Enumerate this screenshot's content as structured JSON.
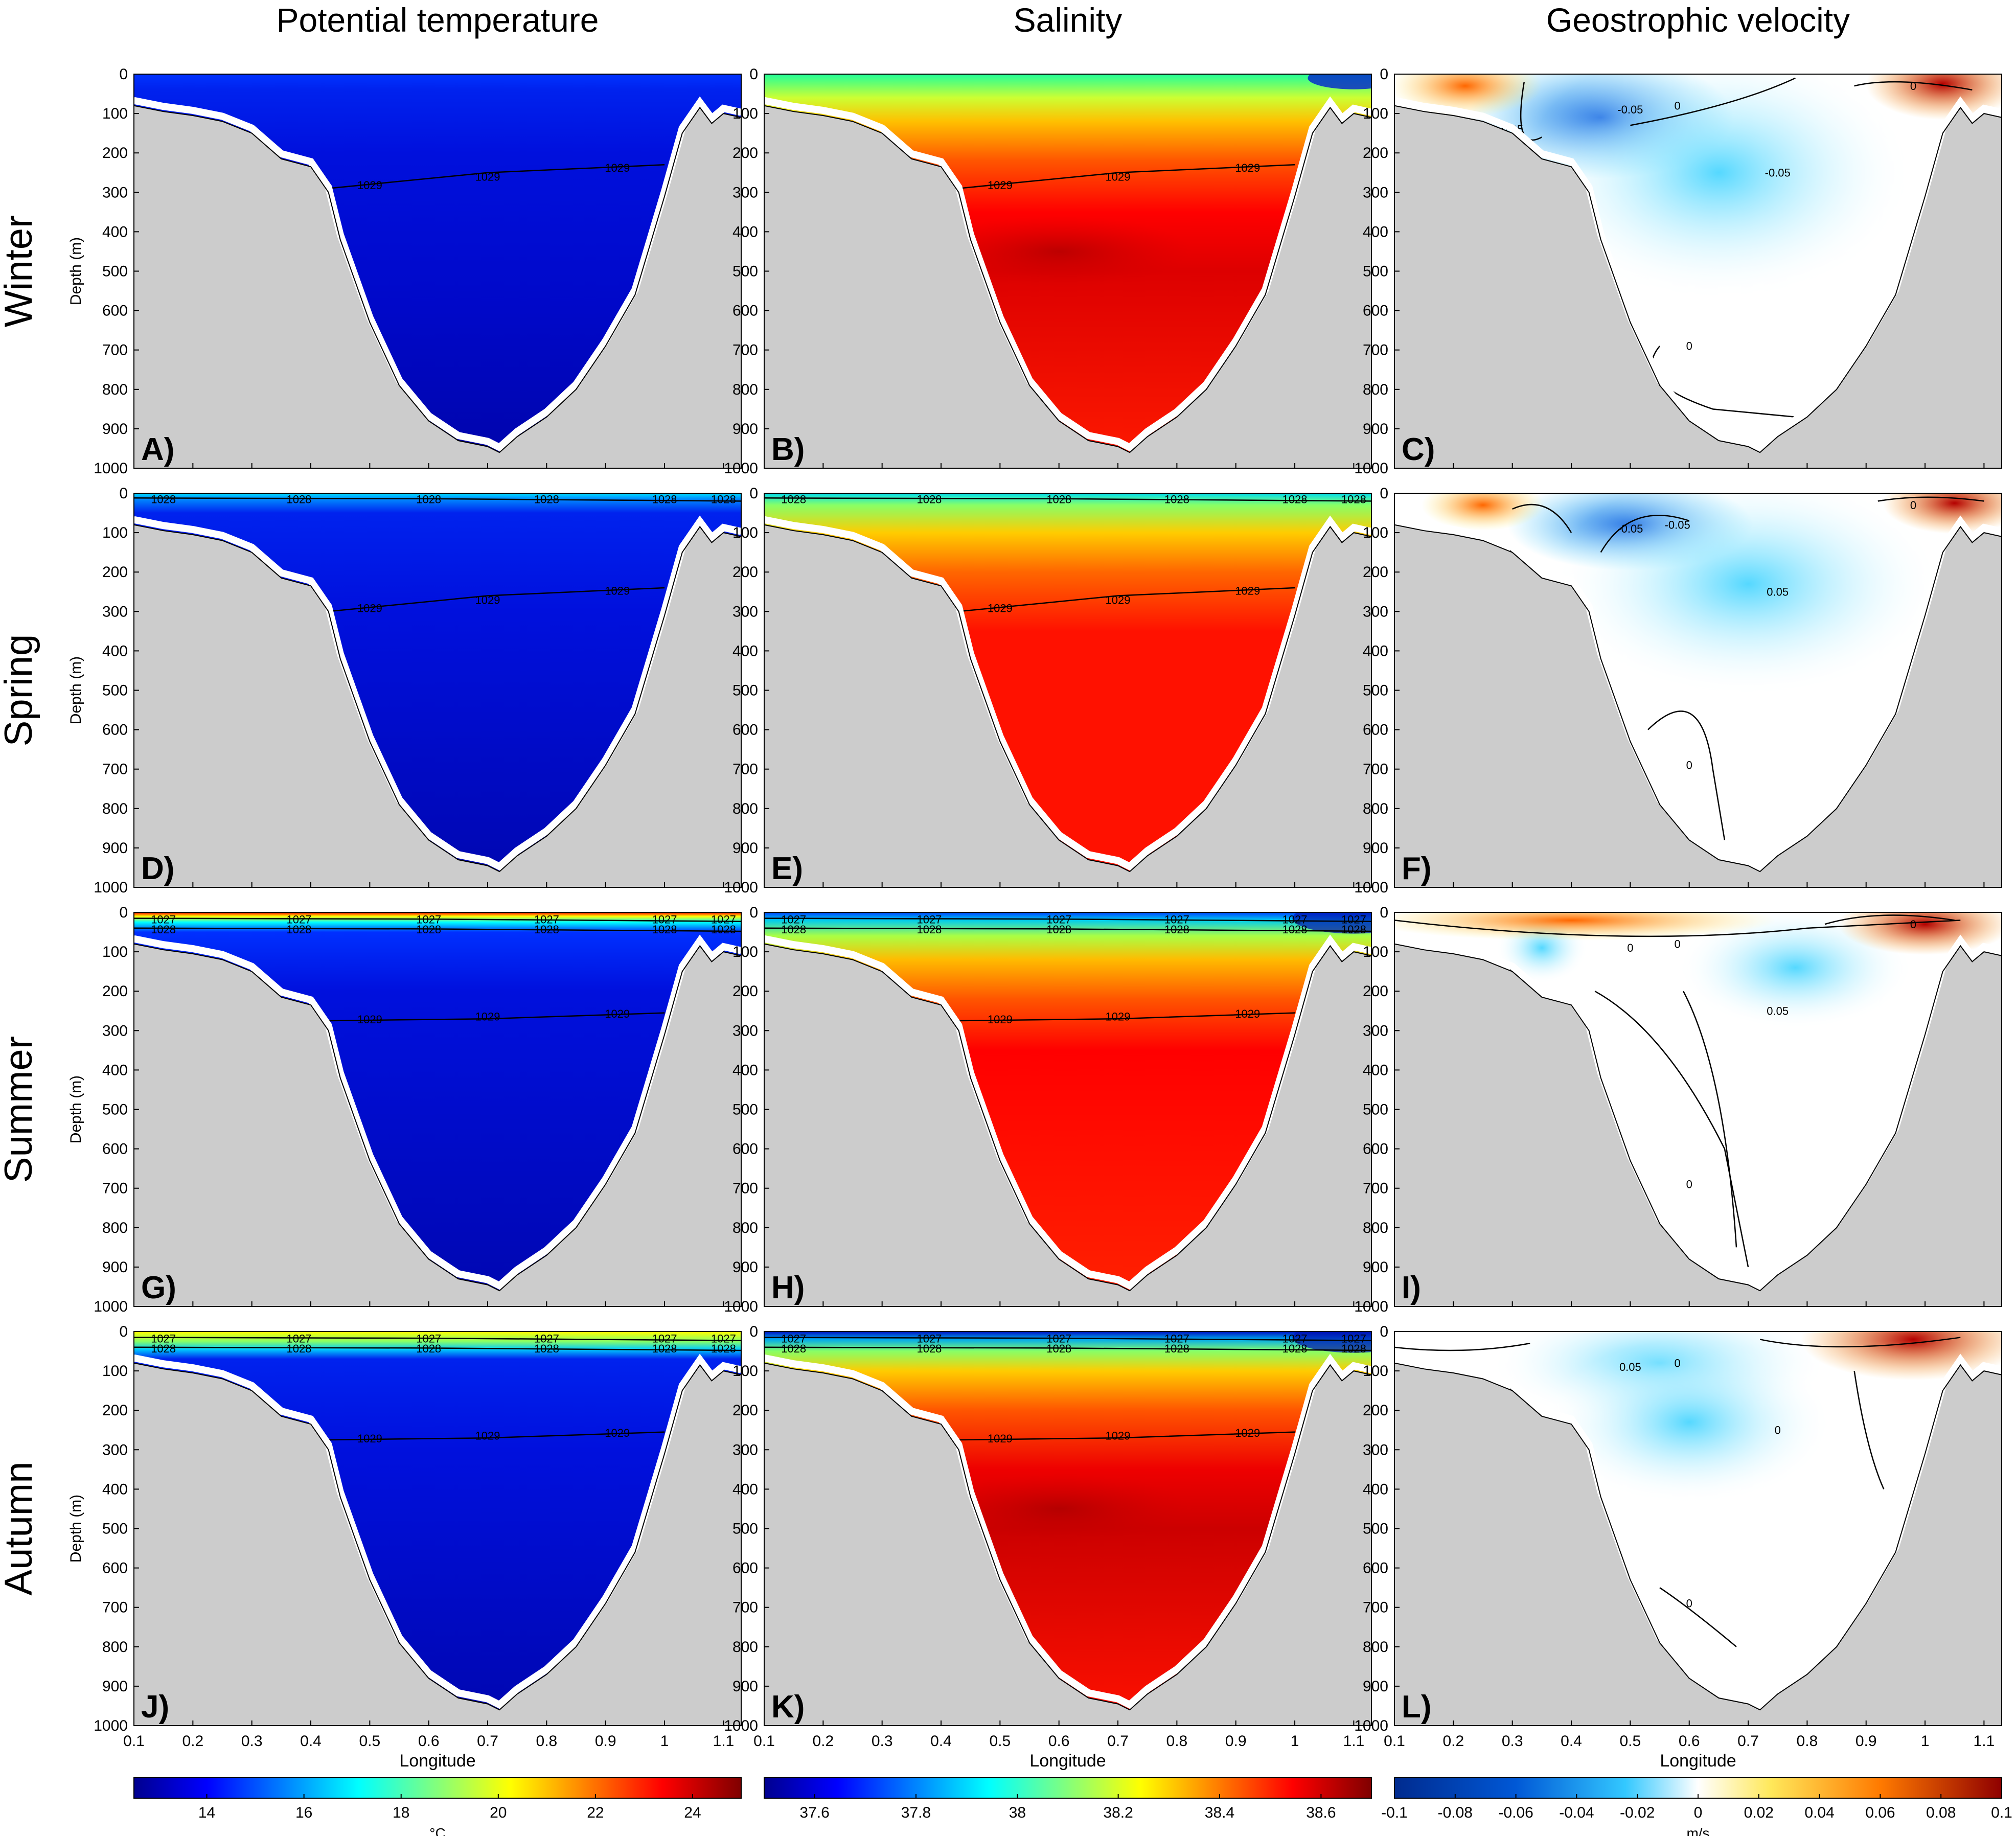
{
  "figure": {
    "column_titles": [
      "Potential temperature",
      "Salinity",
      "Geostrophic velocity"
    ],
    "row_titles": [
      "Winter",
      "Spring",
      "Summer",
      "Autumn"
    ],
    "panel_letters": [
      "A)",
      "B)",
      "C)",
      "D)",
      "E)",
      "F)",
      "G)",
      "H)",
      "I)",
      "J)",
      "K)",
      "L)"
    ],
    "ylabel": "Depth (m)",
    "xlabel": "Longitude",
    "y_ticks": [
      "0",
      "100",
      "200",
      "300",
      "400",
      "500",
      "600",
      "700",
      "800",
      "900",
      "1000"
    ],
    "x_ticks": [
      "0.1",
      "0.2",
      "0.3",
      "0.4",
      "0.5",
      "0.6",
      "0.7",
      "0.8",
      "0.9",
      "1",
      "1.1"
    ],
    "colorbars": [
      {
        "ticks": [
          "14",
          "16",
          "18",
          "20",
          "22",
          "24"
        ],
        "unit": "°C"
      },
      {
        "ticks": [
          "37.6",
          "37.8",
          "38",
          "38.2",
          "38.4",
          "38.6"
        ],
        "unit": ""
      },
      {
        "ticks": [
          "-0.1",
          "-0.08",
          "-0.06",
          "-0.04",
          "-0.02",
          "0",
          "0.02",
          "0.04",
          "0.06",
          "0.08",
          "0.1"
        ],
        "unit": "m/s"
      }
    ],
    "colors": {
      "land": "#cccccc",
      "jet": [
        "#00008f",
        "#0000ff",
        "#00ffff",
        "#ffff00",
        "#ff0000",
        "#800000"
      ],
      "velocity": [
        "#002b8f",
        "#0066dd",
        "#33ccff",
        "#ffffff",
        "#ffee66",
        "#ff7700",
        "#990000"
      ]
    }
  },
  "chart_data": {
    "type": "heatmap",
    "panels": "vertical sections (depth vs longitude) of potential temperature, salinity and geostrophic velocity for four seasons",
    "x_range": [
      0.1,
      1.13
    ],
    "y_range": [
      0,
      1000
    ],
    "y_reversed": true,
    "colorbar_ranges": {
      "temperature_C": [
        12.5,
        25
      ],
      "salinity": [
        37.5,
        38.7
      ],
      "velocity_ms": [
        -0.1,
        0.1
      ]
    },
    "bathymetry": {
      "lon": [
        0.1,
        0.15,
        0.2,
        0.25,
        0.3,
        0.35,
        0.4,
        0.43,
        0.45,
        0.5,
        0.55,
        0.6,
        0.65,
        0.7,
        0.72,
        0.75,
        0.8,
        0.85,
        0.9,
        0.95,
        1.0,
        1.03,
        1.06,
        1.08,
        1.1,
        1.13
      ],
      "depth": [
        80,
        95,
        105,
        120,
        150,
        215,
        235,
        300,
        420,
        630,
        790,
        880,
        930,
        945,
        960,
        920,
        870,
        800,
        690,
        560,
        310,
        150,
        85,
        125,
        100,
        110
      ]
    },
    "density_contours": {
      "Winter": [
        {
          "level": "1029",
          "labels_at_lon": [
            0.5,
            0.7,
            0.92
          ]
        }
      ],
      "Spring": [
        {
          "level": "1028",
          "labels_at_lon": [
            0.15,
            0.38,
            0.6,
            0.8,
            1.0,
            1.1
          ]
        },
        {
          "level": "1029",
          "labels_at_lon": [
            0.5,
            0.7,
            0.92
          ]
        }
      ],
      "Summer": [
        {
          "level": "1027",
          "labels_at_lon": [
            0.15,
            0.38,
            0.6,
            0.8,
            1.0,
            1.1
          ]
        },
        {
          "level": "1028",
          "labels_at_lon": [
            0.15,
            0.38,
            0.6,
            0.8,
            1.0,
            1.1
          ]
        },
        {
          "level": "1029",
          "labels_at_lon": [
            0.5,
            0.7,
            0.92
          ]
        }
      ],
      "Autumn": [
        {
          "level": "1027",
          "labels_at_lon": [
            0.15,
            0.38,
            0.6,
            0.8,
            1.0,
            1.1
          ]
        },
        {
          "level": "1028",
          "labels_at_lon": [
            0.15,
            0.38,
            0.6,
            0.8,
            1.0,
            1.1
          ]
        },
        {
          "level": "1029",
          "labels_at_lon": [
            0.5,
            0.7,
            0.92
          ]
        }
      ]
    },
    "velocity_contour_labels": {
      "Winter": [
        "0.05",
        "0",
        "-0.05",
        "-0.05",
        "0",
        "0"
      ],
      "Spring": [
        "0",
        "-0.05",
        "-0.05",
        "0.05",
        "0",
        "0"
      ],
      "Summer": [
        "0",
        "0",
        "0",
        "0.05",
        "0",
        "0",
        "0"
      ],
      "Autumn": [
        "0",
        "0",
        "0.05",
        "0",
        "0"
      ]
    }
  }
}
